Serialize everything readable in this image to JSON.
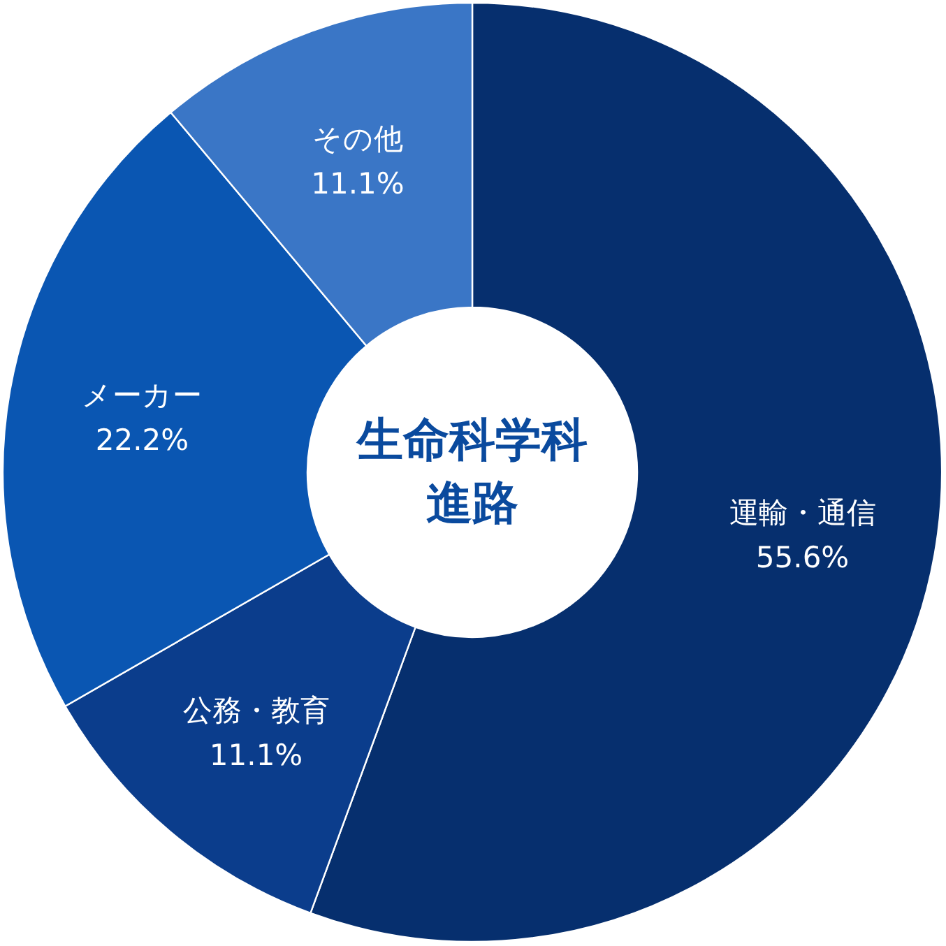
{
  "chart_data": {
    "type": "donut",
    "title": "生命科学科進路",
    "categories": [
      "運輸・通信",
      "公務・教育",
      "メーカー",
      "その他"
    ],
    "values": [
      55.6,
      11.1,
      22.2,
      11.1
    ],
    "colors": [
      "#062f6e",
      "#0b3d8c",
      "#0a56b2",
      "#3a76c6"
    ],
    "value_labels": [
      "55.6%",
      "11.1%",
      "22.2%",
      "11.1%"
    ]
  }
}
